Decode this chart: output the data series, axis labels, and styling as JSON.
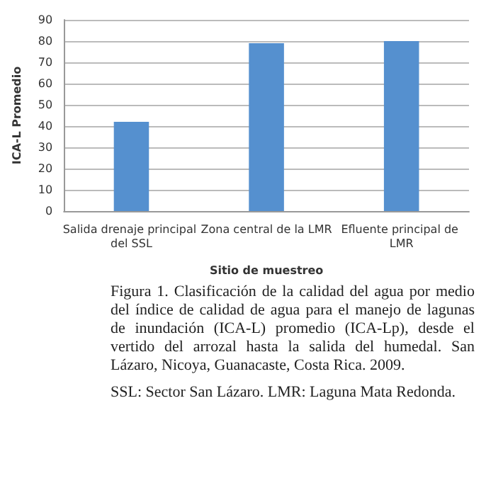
{
  "chart_data": {
    "type": "bar",
    "categories": [
      "Salida drenaje principal del SSL",
      "Zona central de la LMR",
      "Efluente principal de LMR"
    ],
    "values": [
      42,
      79,
      80
    ],
    "color": "#5590cf",
    "xlabel": "Sitio de muestreo",
    "ylabel": "ICA-L Promedio",
    "ylim": [
      0,
      90
    ],
    "yticks": [
      0,
      10,
      20,
      30,
      40,
      50,
      60,
      70,
      80,
      90
    ],
    "grid": true,
    "annotations": [
      "Figura 1. Clasificación de la calidad del agua por medio del índice de calidad de agua para el manejo de lagunas de inundación (ICA-L) promedio (ICA-Lp), desde el vertido del arrozal hasta la salida del humedal. San Lázaro, Nicoya, Guanacaste, Costa Rica. 2009.",
      "SSL: Sector San Lázaro. LMR: Laguna Mata Redonda."
    ]
  }
}
